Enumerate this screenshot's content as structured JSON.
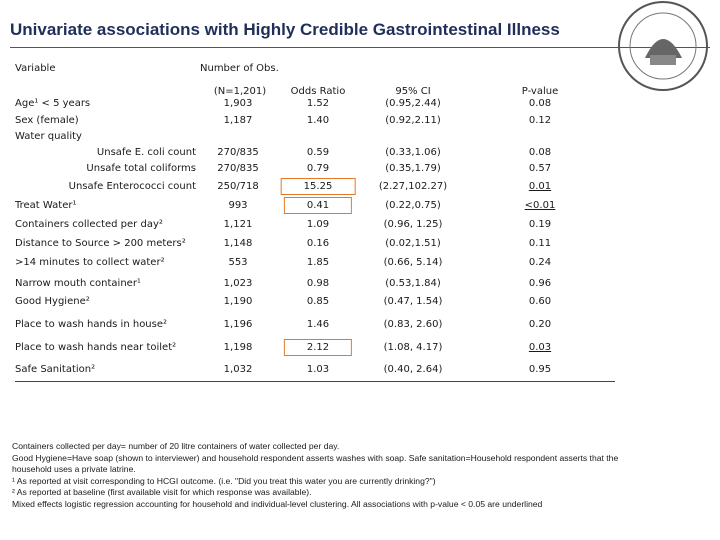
{
  "title": "Univariate associations with Highly Credible Gastrointestinal Illness",
  "table": {
    "headers": {
      "variable": "Variable",
      "obs": "Number of Obs.",
      "n": "(N=1,201)",
      "or": "Odds Ratio",
      "ci": "95% CI",
      "p": "P-value"
    },
    "rows": [
      {
        "label": "Age¹ < 5 years",
        "obs": "1,903",
        "or": "1.52",
        "ci": "(0.95,2.44)",
        "p": "0.08"
      },
      {
        "label": "Sex (female)",
        "obs": "1,187",
        "or": "1.40",
        "ci": "(0.92,2.11)",
        "p": "0.12"
      },
      {
        "label": "Water quality"
      },
      {
        "label": "Unsafe E. coli count",
        "indent": true,
        "obs": "270/835",
        "or": "0.59",
        "ci": "(0.33,1.06)",
        "p": "0.08"
      },
      {
        "label": "Unsafe total coliforms",
        "indent": true,
        "obs": "270/835",
        "or": "0.79",
        "ci": "(0.35,1.79)",
        "p": "0.57"
      },
      {
        "label": "Unsafe Enterococci count",
        "indent": true,
        "obs": "250/718",
        "or": "15.25",
        "ci": "(2.27,102.27)",
        "p": "0.01",
        "boxed": true,
        "underlined": true
      },
      {
        "label": "Treat Water¹",
        "obs": "993",
        "or": "0.41",
        "ci": "(0.22,0.75)",
        "p": "<0.01",
        "boxed": true,
        "underlined": true
      },
      {
        "label": "Containers collected per day²",
        "obs": "1,121",
        "or": "1.09",
        "ci": "(0.96, 1.25)",
        "p": "0.19"
      },
      {
        "label": "Distance to Source > 200 meters²",
        "obs": "1,148",
        "or": "0.16",
        "ci": "(0.02,1.51)",
        "p": "0.11"
      },
      {
        "label": ">14 minutes to collect water²",
        "obs": "553",
        "or": "1.85",
        "ci": "(0.66, 5.14)",
        "p": "0.24"
      },
      {
        "label": "Narrow mouth container¹",
        "obs": "1,023",
        "or": "0.98",
        "ci": "(0.53,1.84)",
        "p": "0.96"
      },
      {
        "label": "Good Hygiene²",
        "obs": "1,190",
        "or": "0.85",
        "ci": "(0.47, 1.54)",
        "p": "0.60"
      },
      {
        "label": "Place to wash hands in house²",
        "obs": "1,196",
        "or": "1.46",
        "ci": "(0.83, 2.60)",
        "p": "0.20"
      },
      {
        "label": "Place to wash hands near toilet²",
        "obs": "1,198",
        "or": "2.12",
        "ci": "(1.08, 4.17)",
        "p": "0.03",
        "boxed": true,
        "underlined": true
      },
      {
        "label": "Safe Sanitation²",
        "obs": "1,032",
        "or": "1.03",
        "ci": "(0.40, 2.64)",
        "p": "0.95"
      }
    ]
  },
  "footnotes": [
    "Containers collected per day= number of 20 litre containers of water collected per day.",
    "Good Hygiene=Have soap (shown to interviewer) and household respondent asserts washes with soap. Safe sanitation=Household respondent asserts that the",
    "household uses a private latrine.",
    "¹ As reported at visit corresponding to HCGI outcome. (i.e. \"Did you treat this water you are currently drinking?\")",
    "² As reported at baseline (first available visit for which response was available).",
    "Mixed effects logistic regression accounting for household and individual-level clustering. All associations with p-value < 0.05 are underlined"
  ]
}
